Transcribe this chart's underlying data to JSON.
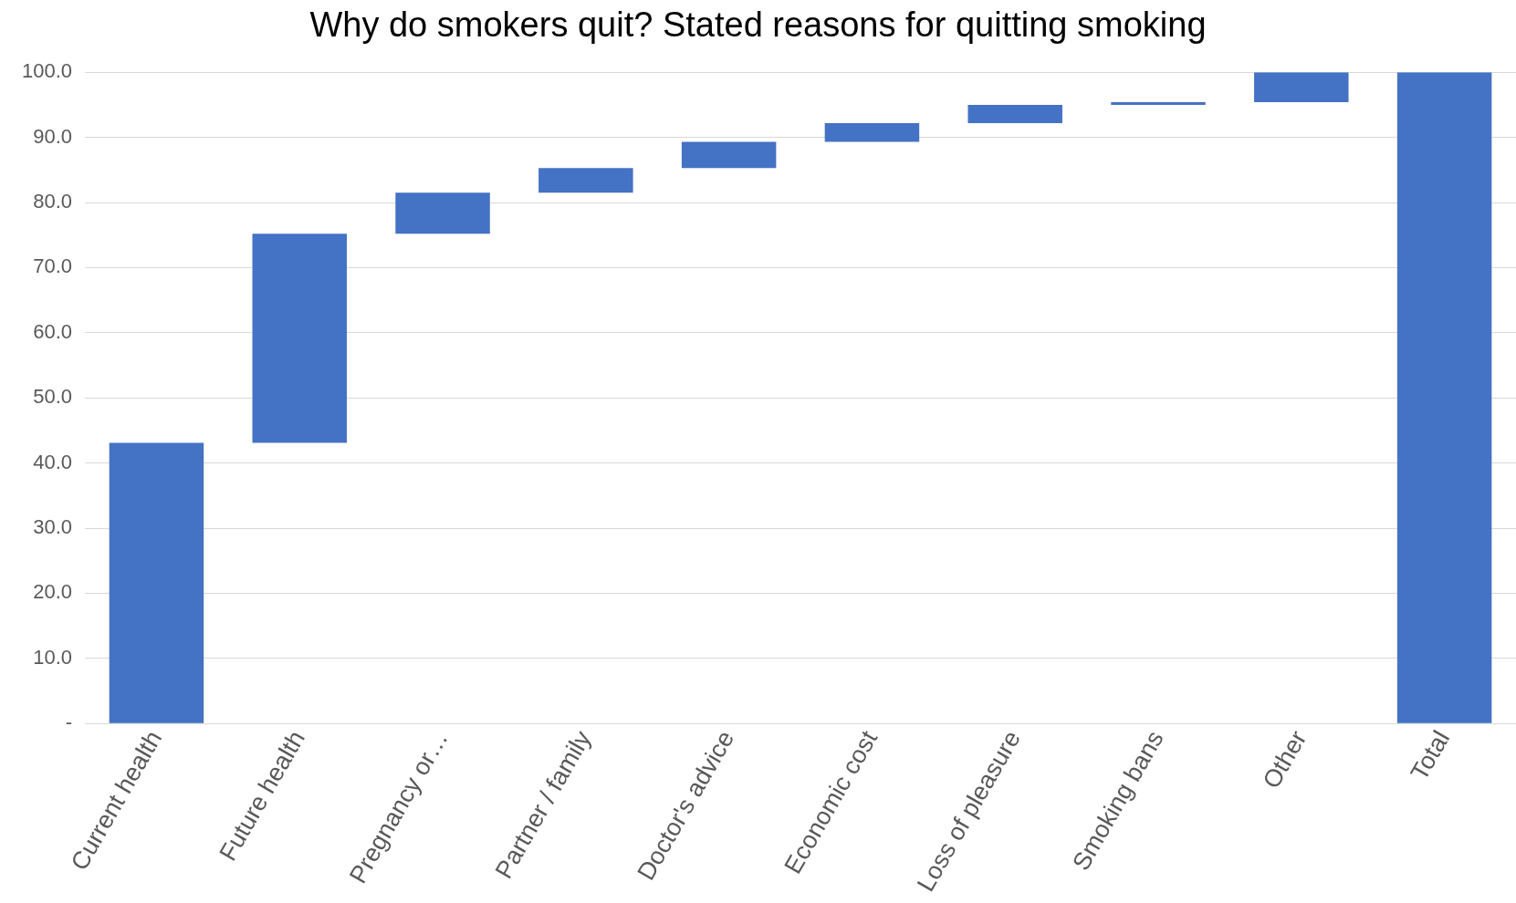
{
  "chart_data": {
    "type": "bar",
    "title": "Why do smokers quit? Stated reasons for quitting smoking",
    "categories": [
      "Current health",
      "Future health",
      "Pregnancy or…",
      "Partner / family",
      "Doctor's advice",
      "Economic cost",
      "Loss of pleasure",
      "Smoking bans",
      "Other",
      "Total"
    ],
    "values": [
      43.1,
      32.1,
      6.3,
      3.8,
      4.0,
      2.9,
      2.8,
      0.4,
      4.6,
      100.0
    ],
    "base": [
      0,
      43.1,
      75.2,
      81.5,
      85.3,
      89.3,
      92.2,
      95.0,
      95.4,
      0
    ],
    "color": "#4472c4",
    "ylim": [
      0,
      100
    ],
    "yticks": [
      {
        "value": 0,
        "label": "-"
      },
      {
        "value": 10,
        "label": "10.0"
      },
      {
        "value": 20,
        "label": "20.0"
      },
      {
        "value": 30,
        "label": "30.0"
      },
      {
        "value": 40,
        "label": "40.0"
      },
      {
        "value": 50,
        "label": "50.0"
      },
      {
        "value": 60,
        "label": "60.0"
      },
      {
        "value": 70,
        "label": "70.0"
      },
      {
        "value": 80,
        "label": "80.0"
      },
      {
        "value": 90,
        "label": "90.0"
      },
      {
        "value": 100,
        "label": "100.0"
      }
    ],
    "grid": "y"
  }
}
